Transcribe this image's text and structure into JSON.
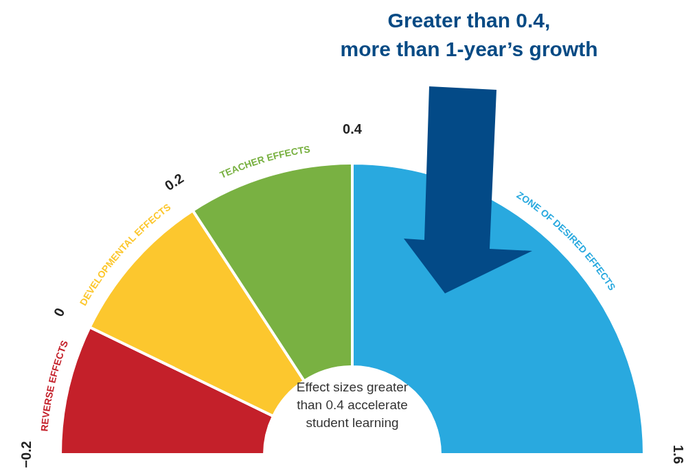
{
  "chart_data": {
    "type": "donut",
    "title": "Greater than 0.4,\nmore than 1-year’s growth",
    "categories": [
      "REVERSE EFFECTS",
      "DEVELOPMENTAL EFFECTS",
      "TEACHER EFFECTS",
      "ZONE OF DESIRED EFFECTS"
    ],
    "values": [
      14.4,
      17.2,
      18.4,
      50
    ],
    "colors": [
      "#c4202a",
      "#fcc72e",
      "#79b142",
      "#29a9df"
    ],
    "annotations": [
      "−0.2",
      "0",
      "0.2",
      "0.4",
      "1.6",
      "Effect sizes greater\nthan 0.4 accelerate\nstudent learning"
    ],
    "legend": false
  }
}
